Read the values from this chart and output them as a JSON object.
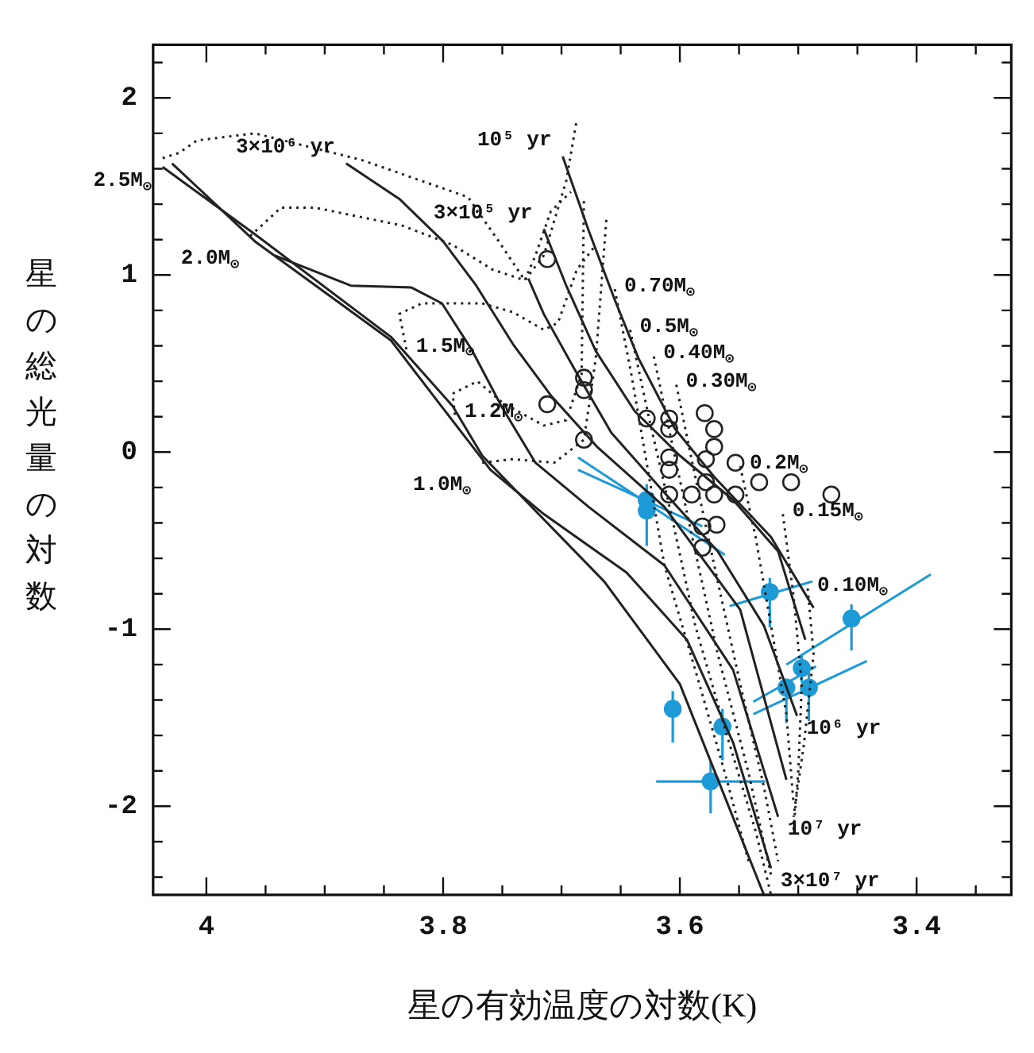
{
  "chart_data": {
    "type": "line",
    "xlabel": "星の有効温度の対数(K)",
    "ylabel": "星の総光量の対数",
    "xlim": [
      4.045,
      3.32
    ],
    "ylim": [
      -2.5,
      2.3
    ],
    "xticks": [
      4,
      {
        "value": 3.95,
        "label": null
      },
      {
        "value": 3.9,
        "label": null
      },
      {
        "value": 3.85,
        "label": null
      },
      3.8,
      {
        "value": 3.75,
        "label": null
      },
      {
        "value": 3.7,
        "label": null
      },
      {
        "value": 3.65,
        "label": null
      },
      3.6,
      {
        "value": 3.55,
        "label": null
      },
      {
        "value": 3.5,
        "label": null
      },
      {
        "value": 3.45,
        "label": null
      },
      3.4,
      {
        "value": 3.35,
        "label": null
      }
    ],
    "yticks": [
      {
        "value": -2.4,
        "label": null
      },
      {
        "value": -2.2,
        "label": null
      },
      -2,
      {
        "value": -1.8,
        "label": null
      },
      {
        "value": -1.6,
        "label": null
      },
      {
        "value": -1.4,
        "label": null
      },
      {
        "value": -1.2,
        "label": null
      },
      -1,
      {
        "value": -0.8,
        "label": null
      },
      {
        "value": -0.6,
        "label": null
      },
      {
        "value": -0.4,
        "label": null
      },
      {
        "value": -0.2,
        "label": null
      },
      0,
      {
        "value": 0.2,
        "label": null
      },
      {
        "value": 0.4,
        "label": null
      },
      {
        "value": 0.6,
        "label": null
      },
      {
        "value": 0.8,
        "label": null
      },
      1,
      {
        "value": 1.2,
        "label": null
      },
      {
        "value": 1.4,
        "label": null
      },
      {
        "value": 1.6,
        "label": null
      },
      {
        "value": 1.8,
        "label": null
      },
      2,
      {
        "value": 2.2,
        "label": null
      }
    ],
    "marker": "none",
    "series": [
      {
        "type": "line",
        "color": "#222222",
        "line_style": "solid",
        "x": [
          4.037,
          3.959,
          3.844,
          3.792,
          3.767,
          3.728,
          3.664,
          3.6,
          3.529
        ],
        "values": [
          1.61,
          1.23,
          0.65,
          0.26,
          -0.02,
          -0.29,
          -0.73,
          -1.31,
          -2.5
        ]
      },
      {
        "type": "line",
        "name": "10⁵ yr",
        "color": "#222222",
        "line_style": "solid",
        "x": [
          3.699,
          3.677,
          3.655,
          3.635,
          3.604,
          3.571,
          3.523,
          3.487
        ],
        "values": [
          1.67,
          1.25,
          0.86,
          0.53,
          0.13,
          -0.14,
          -0.48,
          -0.88
        ]
      },
      {
        "type": "line",
        "name": "3×10⁵ yr",
        "color": "#222222",
        "line_style": "solid",
        "x": [
          3.715,
          3.696,
          3.671,
          3.638,
          3.6,
          3.555,
          3.517,
          3.494
        ],
        "values": [
          1.26,
          0.94,
          0.57,
          0.23,
          -0.02,
          -0.27,
          -0.56,
          -1.06
        ]
      },
      {
        "type": "line",
        "name": "10⁶ yr",
        "color": "#222222",
        "line_style": "solid",
        "x": [
          3.501,
          3.529,
          3.568,
          3.613,
          3.658,
          3.69,
          3.715,
          3.728
        ],
        "values": [
          -1.49,
          -0.98,
          -0.56,
          -0.23,
          0.11,
          0.48,
          0.78,
          0.98
        ]
      },
      {
        "type": "line",
        "name": "3×10⁶ yr",
        "color": "#222222",
        "line_style": "solid",
        "x": [
          3.882,
          3.837,
          3.8,
          3.772,
          3.741,
          3.709,
          3.67,
          3.613,
          3.549,
          3.51
        ],
        "values": [
          1.63,
          1.43,
          1.19,
          0.94,
          0.61,
          0.32,
          0.03,
          -0.31,
          -0.89,
          -1.85
        ]
      },
      {
        "type": "line",
        "name": "10⁷ yr",
        "color": "#222222",
        "line_style": "solid",
        "x": [
          3.517,
          3.555,
          3.613,
          3.677,
          3.722,
          3.75,
          3.776,
          3.801,
          3.827,
          3.878,
          3.942
        ],
        "values": [
          -2.06,
          -1.23,
          -0.64,
          -0.31,
          -0.06,
          0.25,
          0.58,
          0.84,
          0.93,
          0.94,
          1.11
        ]
      },
      {
        "type": "line",
        "name": "3×10⁷ yr",
        "color": "#222222",
        "line_style": "solid",
        "x": [
          3.523,
          3.555,
          3.594,
          3.645,
          3.715,
          3.76,
          3.805,
          3.844,
          3.959,
          4.029
        ],
        "values": [
          -2.35,
          -1.64,
          -1.06,
          -0.68,
          -0.35,
          -0.1,
          0.29,
          0.63,
          1.19,
          1.63
        ]
      },
      {
        "type": "line",
        "name": "2.5M$_{⊙}$",
        "color": "#222222",
        "line_style": "dotted",
        "x": [
          4.037,
          4.023,
          4.008,
          3.959,
          3.869,
          3.779,
          3.753,
          3.731,
          3.715,
          3.696,
          3.687
        ],
        "values": [
          1.66,
          1.69,
          1.76,
          1.8,
          1.65,
          1.44,
          1.19,
          0.97,
          1.11,
          1.53,
          1.88
        ]
      },
      {
        "type": "line",
        "name": "2.0M$_{⊙}$",
        "color": "#222222",
        "line_style": "dotted",
        "x": [
          3.963,
          3.937,
          3.908,
          3.835,
          3.792,
          3.758,
          3.731,
          3.722,
          3.709,
          3.692
        ],
        "values": [
          1.22,
          1.38,
          1.38,
          1.28,
          1.17,
          1.03,
          0.97,
          1.11,
          1.36,
          1.47
        ]
      },
      {
        "type": "line",
        "name": "1.5M$_{⊙}$",
        "color": "#222222",
        "line_style": "dotted",
        "x": [
          3.831,
          3.837,
          3.818,
          3.767,
          3.741,
          3.715,
          3.703,
          3.687,
          3.671
        ],
        "values": [
          0.58,
          0.78,
          0.84,
          0.84,
          0.79,
          0.69,
          0.73,
          1.03,
          1.17
        ]
      },
      {
        "type": "line",
        "name": "1.2M$_{⊙}$",
        "color": "#222222",
        "line_style": "dotted",
        "x": [
          3.79,
          3.792,
          3.771,
          3.75,
          3.715,
          3.696,
          3.683,
          3.681
        ],
        "values": [
          0.21,
          0.33,
          0.4,
          0.28,
          0.15,
          0.18,
          0.44,
          1.44
        ]
      },
      {
        "type": "line",
        "name": "1.0M$_{⊙}$",
        "color": "#222222",
        "line_style": "dotted",
        "x": [
          3.767,
          3.741,
          3.706,
          3.681,
          3.671,
          3.662
        ],
        "values": [
          -0.06,
          -0.04,
          -0.06,
          0.07,
          0.53,
          1.32
        ]
      },
      {
        "type": "line",
        "name": "0.70M$_{⊙}$",
        "color": "#222222",
        "line_style": "dotted",
        "x": [
          3.655,
          3.641,
          3.626,
          3.613,
          3.587,
          3.562,
          3.542
        ],
        "values": [
          0.92,
          0.44,
          -0.14,
          -0.64,
          -1.23,
          -1.81,
          -2.31
        ]
      },
      {
        "type": "line",
        "name": "0.5M$_{⊙}$",
        "color": "#222222",
        "line_style": "dotted",
        "x": [
          3.642,
          3.626,
          3.606,
          3.587,
          3.562,
          3.536,
          3.523
        ],
        "values": [
          0.69,
          0.19,
          -0.39,
          -0.98,
          -1.56,
          -2.14,
          -2.5
        ]
      },
      {
        "type": "line",
        "name": "0.40M$_{⊙}$",
        "color": "#222222",
        "line_style": "dotted",
        "x": [
          3.622,
          3.606,
          3.587,
          3.568,
          3.542,
          3.523
        ],
        "values": [
          0.54,
          0.03,
          -0.56,
          -1.14,
          -1.81,
          -2.39
        ]
      },
      {
        "type": "line",
        "name": "0.30M$_{⊙}$",
        "color": "#222222",
        "line_style": "dotted",
        "x": [
          3.603,
          3.587,
          3.568,
          3.549,
          3.529,
          3.517
        ],
        "values": [
          0.38,
          -0.14,
          -0.73,
          -1.31,
          -1.89,
          -2.31
        ]
      },
      {
        "type": "line",
        "name": "0.2M$_{⊙}$",
        "color": "#222222",
        "line_style": "dotted",
        "x": [
          3.549,
          3.536,
          3.523,
          3.51,
          3.504
        ],
        "values": [
          -0.08,
          -0.48,
          -0.98,
          -1.48,
          -1.98
        ]
      },
      {
        "type": "line",
        "name": "0.15M$_{⊙}$",
        "color": "#222222",
        "line_style": "dotted",
        "x": [
          3.513,
          3.504,
          3.497,
          3.5,
          3.504
        ],
        "values": [
          -0.35,
          -0.81,
          -1.31,
          -1.81,
          -2.14
        ]
      },
      {
        "type": "line",
        "name": "0.10M$_{⊙}$",
        "color": "#222222",
        "line_style": "dotted",
        "x": [
          3.492,
          3.487,
          3.495,
          3.504
        ],
        "values": [
          -0.77,
          -1.14,
          -1.64,
          -2.06
        ]
      },
      {
        "type": "scatter",
        "marker": "circle",
        "color": "#222222",
        "x": [
          3.712,
          3.712,
          3.681,
          3.681,
          3.681,
          3.628,
          3.609,
          3.609,
          3.609,
          3.609,
          3.609,
          3.579,
          3.571,
          3.571,
          3.578,
          3.553,
          3.533,
          3.506,
          3.472,
          3.59,
          3.571,
          3.553,
          3.578,
          3.581,
          3.569,
          3.581
        ],
        "values": [
          1.09,
          0.27,
          0.42,
          0.35,
          0.07,
          0.19,
          0.19,
          0.13,
          -0.03,
          -0.1,
          -0.24,
          0.22,
          0.13,
          0.03,
          -0.04,
          -0.06,
          -0.17,
          -0.17,
          -0.24,
          -0.24,
          -0.24,
          -0.24,
          -0.17,
          -0.42,
          -0.41,
          -0.54
        ]
      },
      {
        "type": "line",
        "color": "#1e9ad6",
        "line_style": "solid",
        "x": [
          3.686,
          3.562
        ],
        "values": [
          -0.03,
          -0.58
        ]
      },
      {
        "type": "line",
        "color": "#1e9ad6",
        "line_style": "solid",
        "x": [
          3.686,
          3.581
        ],
        "values": [
          -0.1,
          -0.42
        ]
      },
      {
        "type": "line",
        "color": "#1e9ad6",
        "line_style": "solid",
        "x": [
          3.558,
          3.488
        ],
        "values": [
          -0.87,
          -0.73
        ]
      },
      {
        "type": "line",
        "color": "#1e9ad6",
        "line_style": "solid",
        "x": [
          3.51,
          3.388
        ],
        "values": [
          -1.2,
          -0.69
        ]
      },
      {
        "type": "line",
        "color": "#1e9ad6",
        "line_style": "solid",
        "x": [
          3.538,
          3.485
        ],
        "values": [
          -1.41,
          -1.21
        ]
      },
      {
        "type": "line",
        "color": "#1e9ad6",
        "line_style": "solid",
        "x": [
          3.538,
          3.442
        ],
        "values": [
          -1.48,
          -1.18
        ]
      },
      {
        "type": "scatter",
        "marker": "circle",
        "color": "#1e9ad6",
        "x": [
          3.628,
          3.628,
          3.524,
          3.455,
          3.497,
          3.51,
          3.491,
          3.606,
          3.564,
          3.574
        ],
        "values": [
          -0.27,
          -0.33,
          -0.79,
          -0.94,
          -1.22,
          -1.33,
          -1.33,
          -1.45,
          -1.55,
          -1.86
        ],
        "errors": [
          [
            -0.53,
            -0.18
          ],
          null,
          [
            -0.99,
            -0.71
          ],
          [
            -1.12,
            -0.86
          ],
          0.08,
          [
            -1.53,
            -1.28
          ],
          [
            -1.52,
            -1.2
          ],
          [
            -1.64,
            -1.35
          ],
          [
            -1.74,
            -1.45
          ],
          [
            -2.04,
            -1.75
          ]
        ],
        "xerrors": [
          null,
          null,
          null,
          null,
          null,
          null,
          null,
          null,
          null,
          0.046
        ]
      }
    ]
  }
}
